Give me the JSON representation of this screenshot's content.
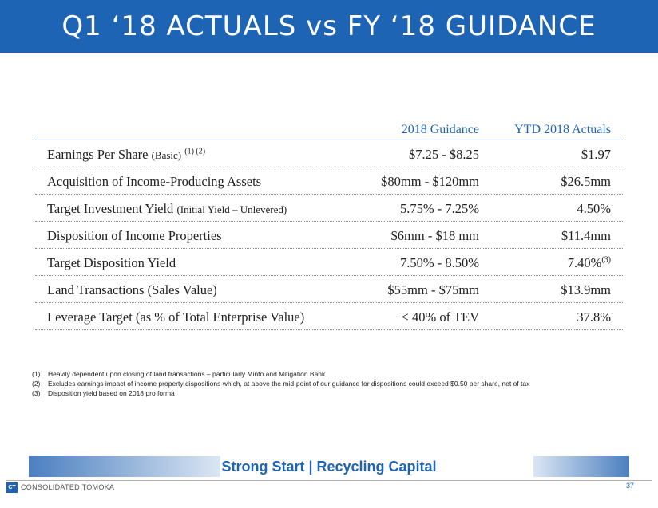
{
  "header": {
    "title": "Q1 ‘18 ACTUALS vs FY ‘18 GUIDANCE"
  },
  "table": {
    "columns": [
      "2018 Guidance",
      "YTD 2018 Actuals"
    ],
    "rows": [
      {
        "label": "Earnings Per Share",
        "label_small": "(Basic)",
        "label_sup": "(1) (2)",
        "guidance": "$7.25 - $8.25",
        "actual": "$1.97",
        "actual_sup": ""
      },
      {
        "label": "Acquisition of Income-Producing Assets",
        "label_small": "",
        "label_sup": "",
        "guidance": "$80mm - $120mm",
        "actual": "$26.5mm",
        "actual_sup": ""
      },
      {
        "label": "Target Investment Yield",
        "label_small": "(Initial Yield – Unlevered)",
        "label_sup": "",
        "guidance": "5.75% - 7.25%",
        "actual": "4.50%",
        "actual_sup": ""
      },
      {
        "label": "Disposition of Income Properties",
        "label_small": "",
        "label_sup": "",
        "guidance": "$6mm - $18 mm",
        "actual": "$11.4mm",
        "actual_sup": ""
      },
      {
        "label": "Target Disposition Yield",
        "label_small": "",
        "label_sup": "",
        "guidance": "7.50% - 8.50%",
        "actual": "7.40%",
        "actual_sup": "(3)"
      },
      {
        "label": "Land Transactions (Sales Value)",
        "label_small": "",
        "label_sup": "",
        "guidance": "$55mm - $75mm",
        "actual": "$13.9mm",
        "actual_sup": ""
      },
      {
        "label": "Leverage Target (as % of Total Enterprise Value)",
        "label_small": "",
        "label_sup": "",
        "guidance": "< 40% of TEV",
        "actual": "37.8%",
        "actual_sup": ""
      }
    ]
  },
  "footnotes": [
    {
      "num": "(1)",
      "text": "Heavily dependent upon closing of land transactions – particularly Minto and Mitigation Bank"
    },
    {
      "num": "(2)",
      "text": "Excludes earnings impact of income property dispositions which, at above the mid-point of our guidance for dispositions could exceed $0.50 per share, net of tax"
    },
    {
      "num": "(3)",
      "text": "Disposition yield based on 2018 pro forma"
    }
  ],
  "footer": {
    "tagline": "Strong Start | Recycling Capital",
    "logo_mark": "CT",
    "company": "CONSOLIDATED TOMOKA",
    "page_number": "37"
  },
  "colors": {
    "brand_blue": "#1e64b4",
    "header_rule": "#1e3a6e"
  }
}
